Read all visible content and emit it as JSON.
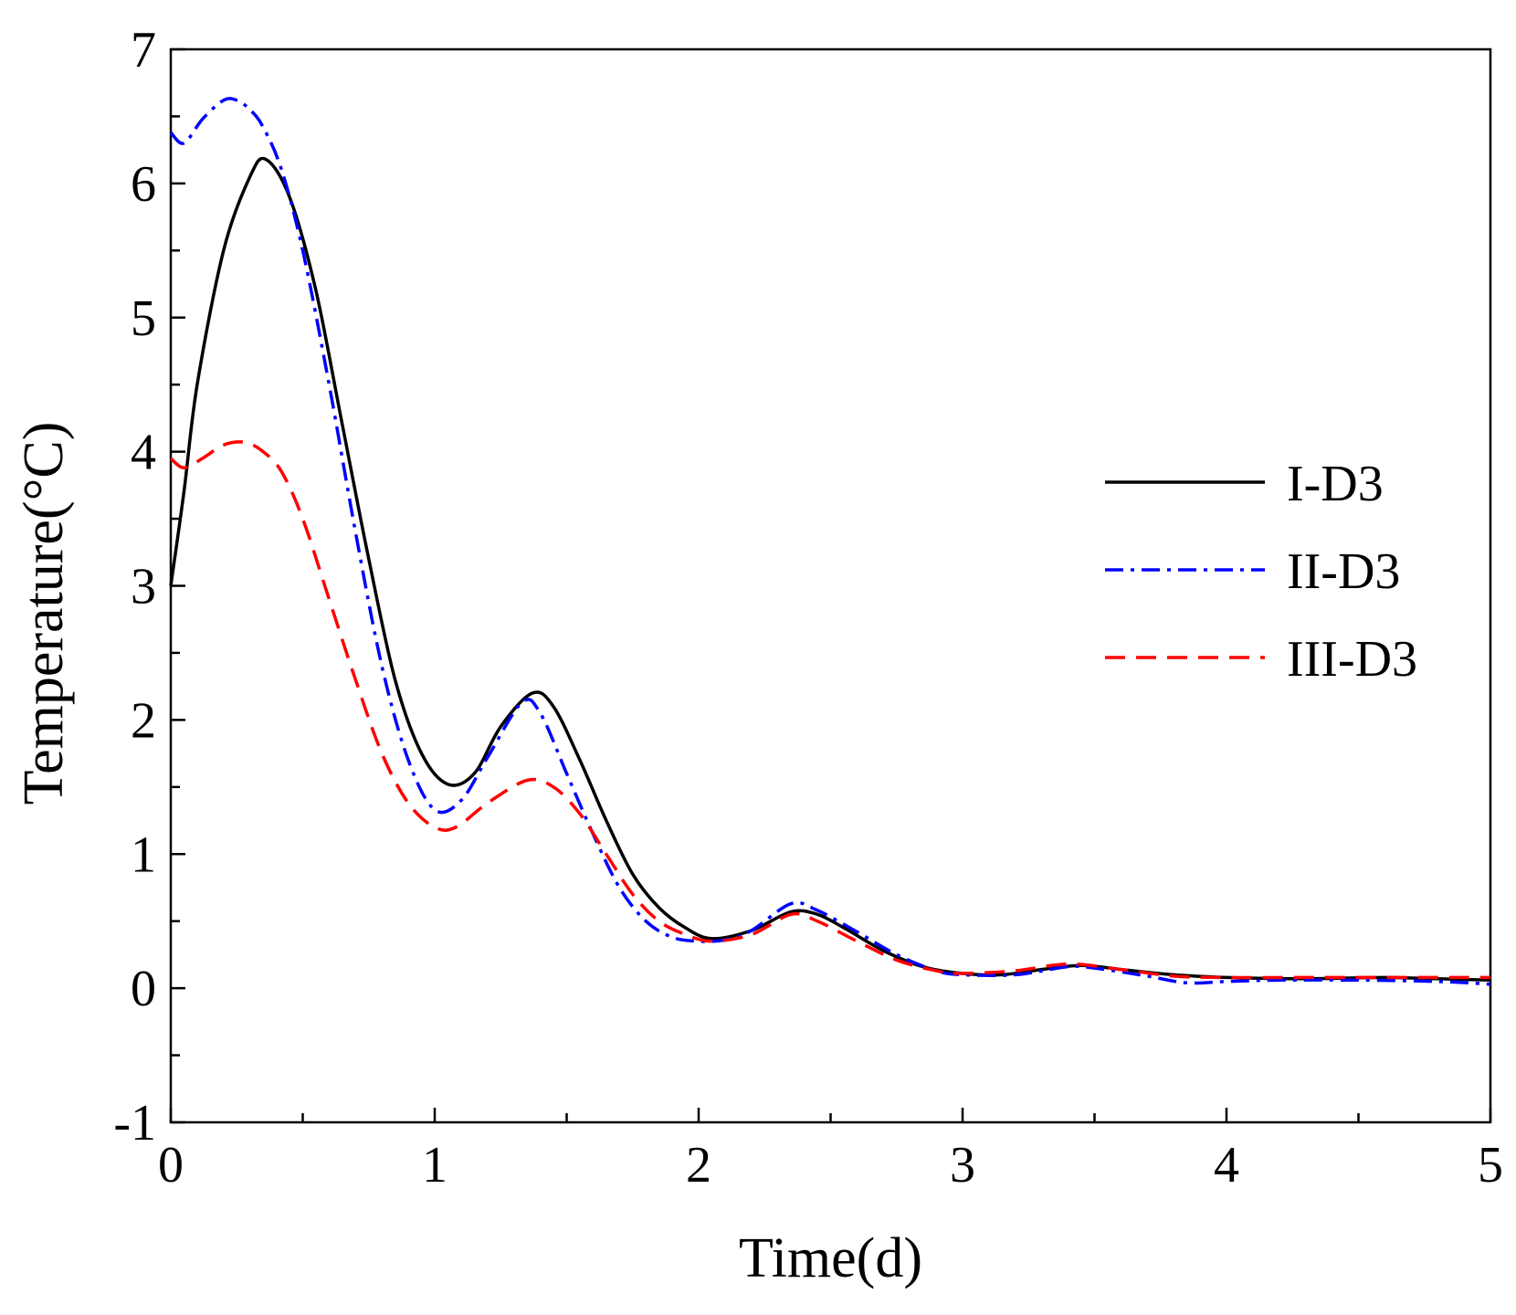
{
  "chart_data": {
    "type": "line",
    "title": "",
    "xlabel": "Time(d)",
    "ylabel": "Temperature(°C)",
    "xlim": [
      0,
      5
    ],
    "ylim": [
      -1,
      7
    ],
    "x_ticks": [
      0,
      1,
      2,
      3,
      4,
      5
    ],
    "x_tick_labels": [
      "0",
      "1",
      "2",
      "3",
      "4",
      "5"
    ],
    "x_minor_step": 0.5,
    "y_ticks": [
      -1,
      0,
      1,
      2,
      3,
      4,
      5,
      6,
      7
    ],
    "y_tick_labels": [
      "-1",
      "0",
      "1",
      "2",
      "3",
      "4",
      "5",
      "6",
      "7"
    ],
    "y_minor_step": 0.5,
    "grid": false,
    "legend_position": "right",
    "series": [
      {
        "name": "I-D3",
        "color": "#000000",
        "dash": "solid",
        "x": [
          0,
          0.05,
          0.1,
          0.2,
          0.3,
          0.36,
          0.45,
          0.55,
          0.65,
          0.75,
          0.85,
          0.95,
          1.05,
          1.15,
          1.25,
          1.37,
          1.45,
          1.55,
          1.65,
          1.75,
          1.85,
          1.95,
          2.05,
          2.2,
          2.35,
          2.45,
          2.55,
          2.7,
          2.85,
          3.0,
          3.15,
          3.3,
          3.45,
          3.6,
          3.8,
          4.0,
          4.3,
          4.6,
          4.8,
          5.0
        ],
        "y": [
          3.0,
          3.7,
          4.5,
          5.5,
          6.05,
          6.18,
          5.9,
          5.2,
          4.2,
          3.2,
          2.3,
          1.75,
          1.52,
          1.6,
          1.95,
          2.2,
          2.1,
          1.7,
          1.25,
          0.85,
          0.6,
          0.45,
          0.37,
          0.43,
          0.57,
          0.55,
          0.45,
          0.28,
          0.16,
          0.11,
          0.1,
          0.14,
          0.17,
          0.14,
          0.1,
          0.08,
          0.07,
          0.08,
          0.07,
          0.06
        ]
      },
      {
        "name": "II-D3",
        "color": "#0000ff",
        "dash": "dashdot",
        "x": [
          0,
          0.05,
          0.12,
          0.2,
          0.25,
          0.3,
          0.35,
          0.42,
          0.5,
          0.6,
          0.7,
          0.8,
          0.9,
          1.0,
          1.1,
          1.2,
          1.33,
          1.4,
          1.5,
          1.6,
          1.7,
          1.8,
          1.9,
          2.0,
          2.1,
          2.2,
          2.35,
          2.45,
          2.6,
          2.75,
          2.9,
          3.0,
          3.2,
          3.4,
          3.5,
          3.7,
          3.85,
          4.0,
          4.2,
          4.5,
          4.8,
          5.0
        ],
        "y": [
          6.38,
          6.3,
          6.48,
          6.62,
          6.62,
          6.55,
          6.42,
          6.1,
          5.5,
          4.5,
          3.4,
          2.4,
          1.7,
          1.33,
          1.4,
          1.72,
          2.13,
          2.05,
          1.6,
          1.15,
          0.75,
          0.5,
          0.38,
          0.35,
          0.36,
          0.43,
          0.63,
          0.58,
          0.42,
          0.25,
          0.13,
          0.1,
          0.1,
          0.16,
          0.15,
          0.09,
          0.04,
          0.05,
          0.06,
          0.06,
          0.05,
          0.03
        ]
      },
      {
        "name": "III-D3",
        "color": "#ff0000",
        "dash": "dashed",
        "x": [
          0,
          0.05,
          0.12,
          0.2,
          0.28,
          0.35,
          0.42,
          0.5,
          0.6,
          0.7,
          0.8,
          0.9,
          1.0,
          1.08,
          1.2,
          1.35,
          1.45,
          1.55,
          1.65,
          1.75,
          1.85,
          1.95,
          2.05,
          2.2,
          2.35,
          2.45,
          2.6,
          2.75,
          2.9,
          3.0,
          3.2,
          3.4,
          3.6,
          3.8,
          4.0,
          4.3,
          4.6,
          5.0
        ],
        "y": [
          3.95,
          3.88,
          3.95,
          4.05,
          4.07,
          4.0,
          3.85,
          3.5,
          2.9,
          2.3,
          1.75,
          1.38,
          1.2,
          1.2,
          1.38,
          1.55,
          1.5,
          1.3,
          1.0,
          0.7,
          0.5,
          0.4,
          0.35,
          0.4,
          0.55,
          0.5,
          0.35,
          0.21,
          0.13,
          0.11,
          0.13,
          0.18,
          0.14,
          0.09,
          0.08,
          0.08,
          0.08,
          0.08
        ]
      }
    ]
  }
}
